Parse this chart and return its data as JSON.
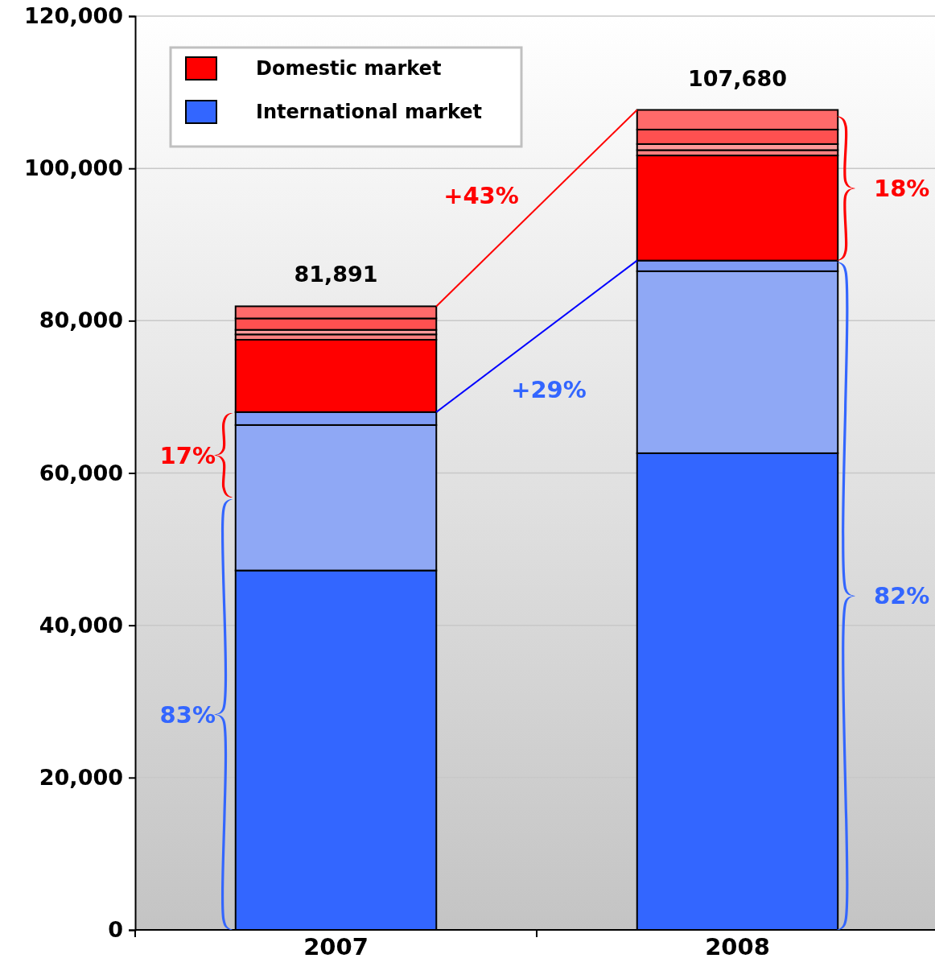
{
  "chart_data": {
    "type": "bar",
    "stacked": true,
    "categories": [
      "2007",
      "2008"
    ],
    "series": [
      {
        "name": "International market",
        "color": "#3366ff",
        "values": [
          47200,
          62600
        ]
      },
      {
        "color": "#8fa8f5",
        "values": [
          19100,
          23900
        ]
      },
      {
        "color": "#7f9cf5",
        "values": [
          1700,
          1400
        ]
      },
      {
        "name": "Domestic market",
        "color": "#ff0000",
        "values": [
          9500,
          13800
        ]
      },
      {
        "color": "#ff8080",
        "values": [
          700,
          700
        ]
      },
      {
        "color": "#ff9a9a",
        "values": [
          600,
          800
        ]
      },
      {
        "color": "#ff5050",
        "values": [
          1500,
          1900
        ]
      },
      {
        "color": "#ff6a6a",
        "values": [
          1591,
          2580
        ]
      }
    ],
    "totals": [
      "81,891",
      "107,680"
    ],
    "ylim": [
      0,
      120000
    ],
    "yticks": [
      {
        "value": 0,
        "label": "0"
      },
      {
        "value": 20000,
        "label": "20,000"
      },
      {
        "value": 40000,
        "label": "40,000"
      },
      {
        "value": 60000,
        "label": "60,000"
      },
      {
        "value": 80000,
        "label": "80,000"
      },
      {
        "value": 100000,
        "label": "100,000"
      },
      {
        "value": 120000,
        "label": "120,000"
      }
    ],
    "grid": "y",
    "legend": "top left",
    "annotations": [
      "+43%",
      "+29%",
      "17%",
      "83%",
      "18%",
      "82%"
    ]
  }
}
